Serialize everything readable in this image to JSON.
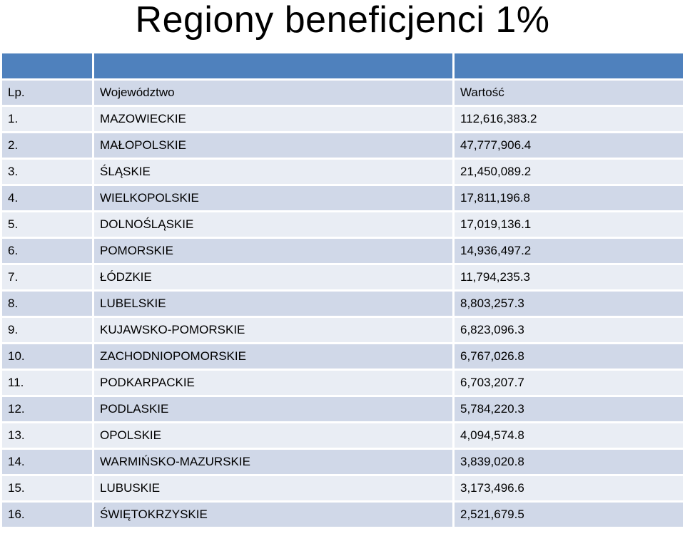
{
  "title": "Regiony beneficjenci 1%",
  "table": {
    "header": [
      "Lp.",
      "Województwo",
      "Wartość"
    ],
    "rows": [
      {
        "lp": "1.",
        "region": "MAZOWIECKIE",
        "value": "112,616,383.2"
      },
      {
        "lp": "2.",
        "region": "MAŁOPOLSKIE",
        "value": "47,777,906.4"
      },
      {
        "lp": "3.",
        "region": "ŚLĄSKIE",
        "value": "21,450,089.2"
      },
      {
        "lp": "4.",
        "region": "WIELKOPOLSKIE",
        "value": "17,811,196.8"
      },
      {
        "lp": "5.",
        "region": "DOLNOŚLĄSKIE",
        "value": "17,019,136.1"
      },
      {
        "lp": "6.",
        "region": "POMORSKIE",
        "value": "14,936,497.2"
      },
      {
        "lp": "7.",
        "region": "ŁÓDZKIE",
        "value": "11,794,235.3"
      },
      {
        "lp": "8.",
        "region": "LUBELSKIE",
        "value": "8,803,257.3"
      },
      {
        "lp": "9.",
        "region": "KUJAWSKO-POMORSKIE",
        "value": "6,823,096.3"
      },
      {
        "lp": "10.",
        "region": "ZACHODNIOPOMORSKIE",
        "value": "6,767,026.8"
      },
      {
        "lp": "11.",
        "region": "PODKARPACKIE",
        "value": "6,703,207.7"
      },
      {
        "lp": "12.",
        "region": "PODLASKIE",
        "value": "5,784,220.3"
      },
      {
        "lp": "13.",
        "region": "OPOLSKIE",
        "value": "4,094,574.8"
      },
      {
        "lp": "14.",
        "region": "WARMIŃSKO-MAZURSKIE",
        "value": "3,839,020.8"
      },
      {
        "lp": "15.",
        "region": "LUBUSKIE",
        "value": "3,173,496.6"
      },
      {
        "lp": "16.",
        "region": "ŚWIĘTOKRZYSKIE",
        "value": "2,521,679.5"
      }
    ]
  },
  "colors": {
    "header_band": "#4f81bd",
    "row_dark": "#d0d8e8",
    "row_light": "#e9edf4"
  }
}
